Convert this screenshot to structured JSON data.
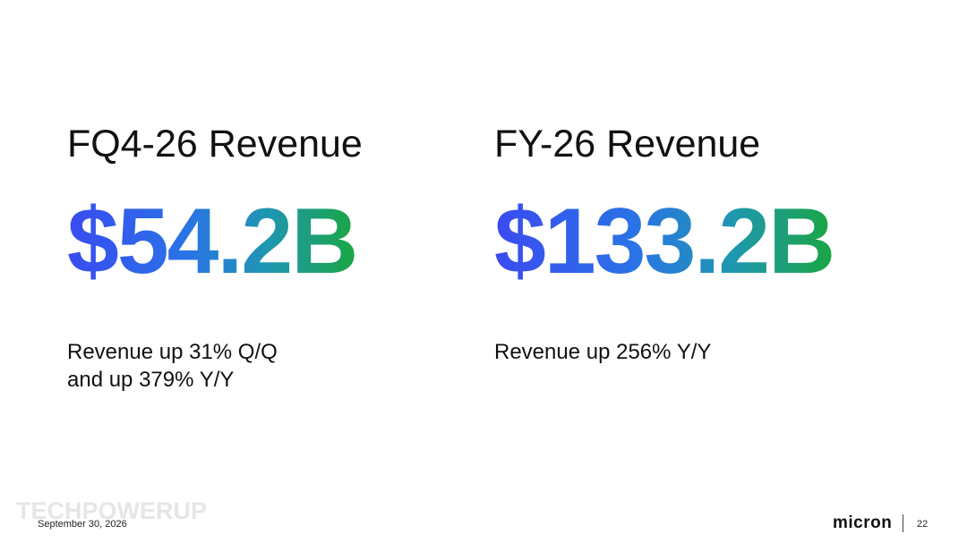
{
  "left": {
    "heading": "FQ4-26 Revenue",
    "value": "$54.2B",
    "sub_lines": [
      "Revenue up 31% Q/Q",
      "and up 379% Y/Y"
    ]
  },
  "right": {
    "heading": "FY-26 Revenue",
    "value": "$133.2B",
    "sub_lines": [
      "Revenue up 256% Y/Y"
    ]
  },
  "footer": {
    "date": "September 30, 2026",
    "logo_text": "micron",
    "page_number": "22",
    "watermark": "TECHPOWERUP"
  },
  "colors": {
    "gradient_start": "#3a4bf0",
    "gradient_end": "#1aa641",
    "text": "#111111"
  }
}
